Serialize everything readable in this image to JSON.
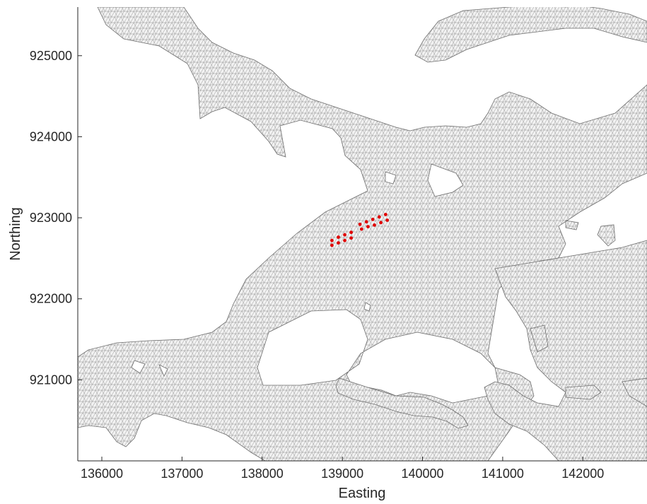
{
  "chart_data": {
    "type": "map",
    "title": "",
    "xlabel": "Easting",
    "ylabel": "Northing",
    "xlim": [
      135700,
      142800
    ],
    "ylim": [
      920000,
      925600
    ],
    "x_ticks": [
      136000,
      137000,
      138000,
      139000,
      140000,
      141000,
      142000
    ],
    "y_ticks": [
      921000,
      922000,
      923000,
      924000,
      925000
    ],
    "x_tick_labels": [
      "136000",
      "137000",
      "138000",
      "139000",
      "140000",
      "141000",
      "142000"
    ],
    "y_tick_labels": [
      "921000",
      "922000",
      "923000",
      "924000",
      "925000"
    ],
    "mesh": {
      "description_color": "#7a7a7a",
      "fill": "#f2f2f2",
      "element": "triangular"
    },
    "markers": {
      "color": "#e00000",
      "points": [
        [
          138870,
          922720
        ],
        [
          138950,
          922760
        ],
        [
          139030,
          922790
        ],
        [
          139110,
          922820
        ],
        [
          138870,
          922660
        ],
        [
          138950,
          922690
        ],
        [
          139030,
          922720
        ],
        [
          139110,
          922750
        ],
        [
          139220,
          922920
        ],
        [
          139300,
          922950
        ],
        [
          139380,
          922980
        ],
        [
          139460,
          923010
        ],
        [
          139540,
          923040
        ],
        [
          139240,
          922860
        ],
        [
          139320,
          922890
        ],
        [
          139400,
          922910
        ],
        [
          139480,
          922940
        ],
        [
          139560,
          922970
        ]
      ]
    }
  }
}
